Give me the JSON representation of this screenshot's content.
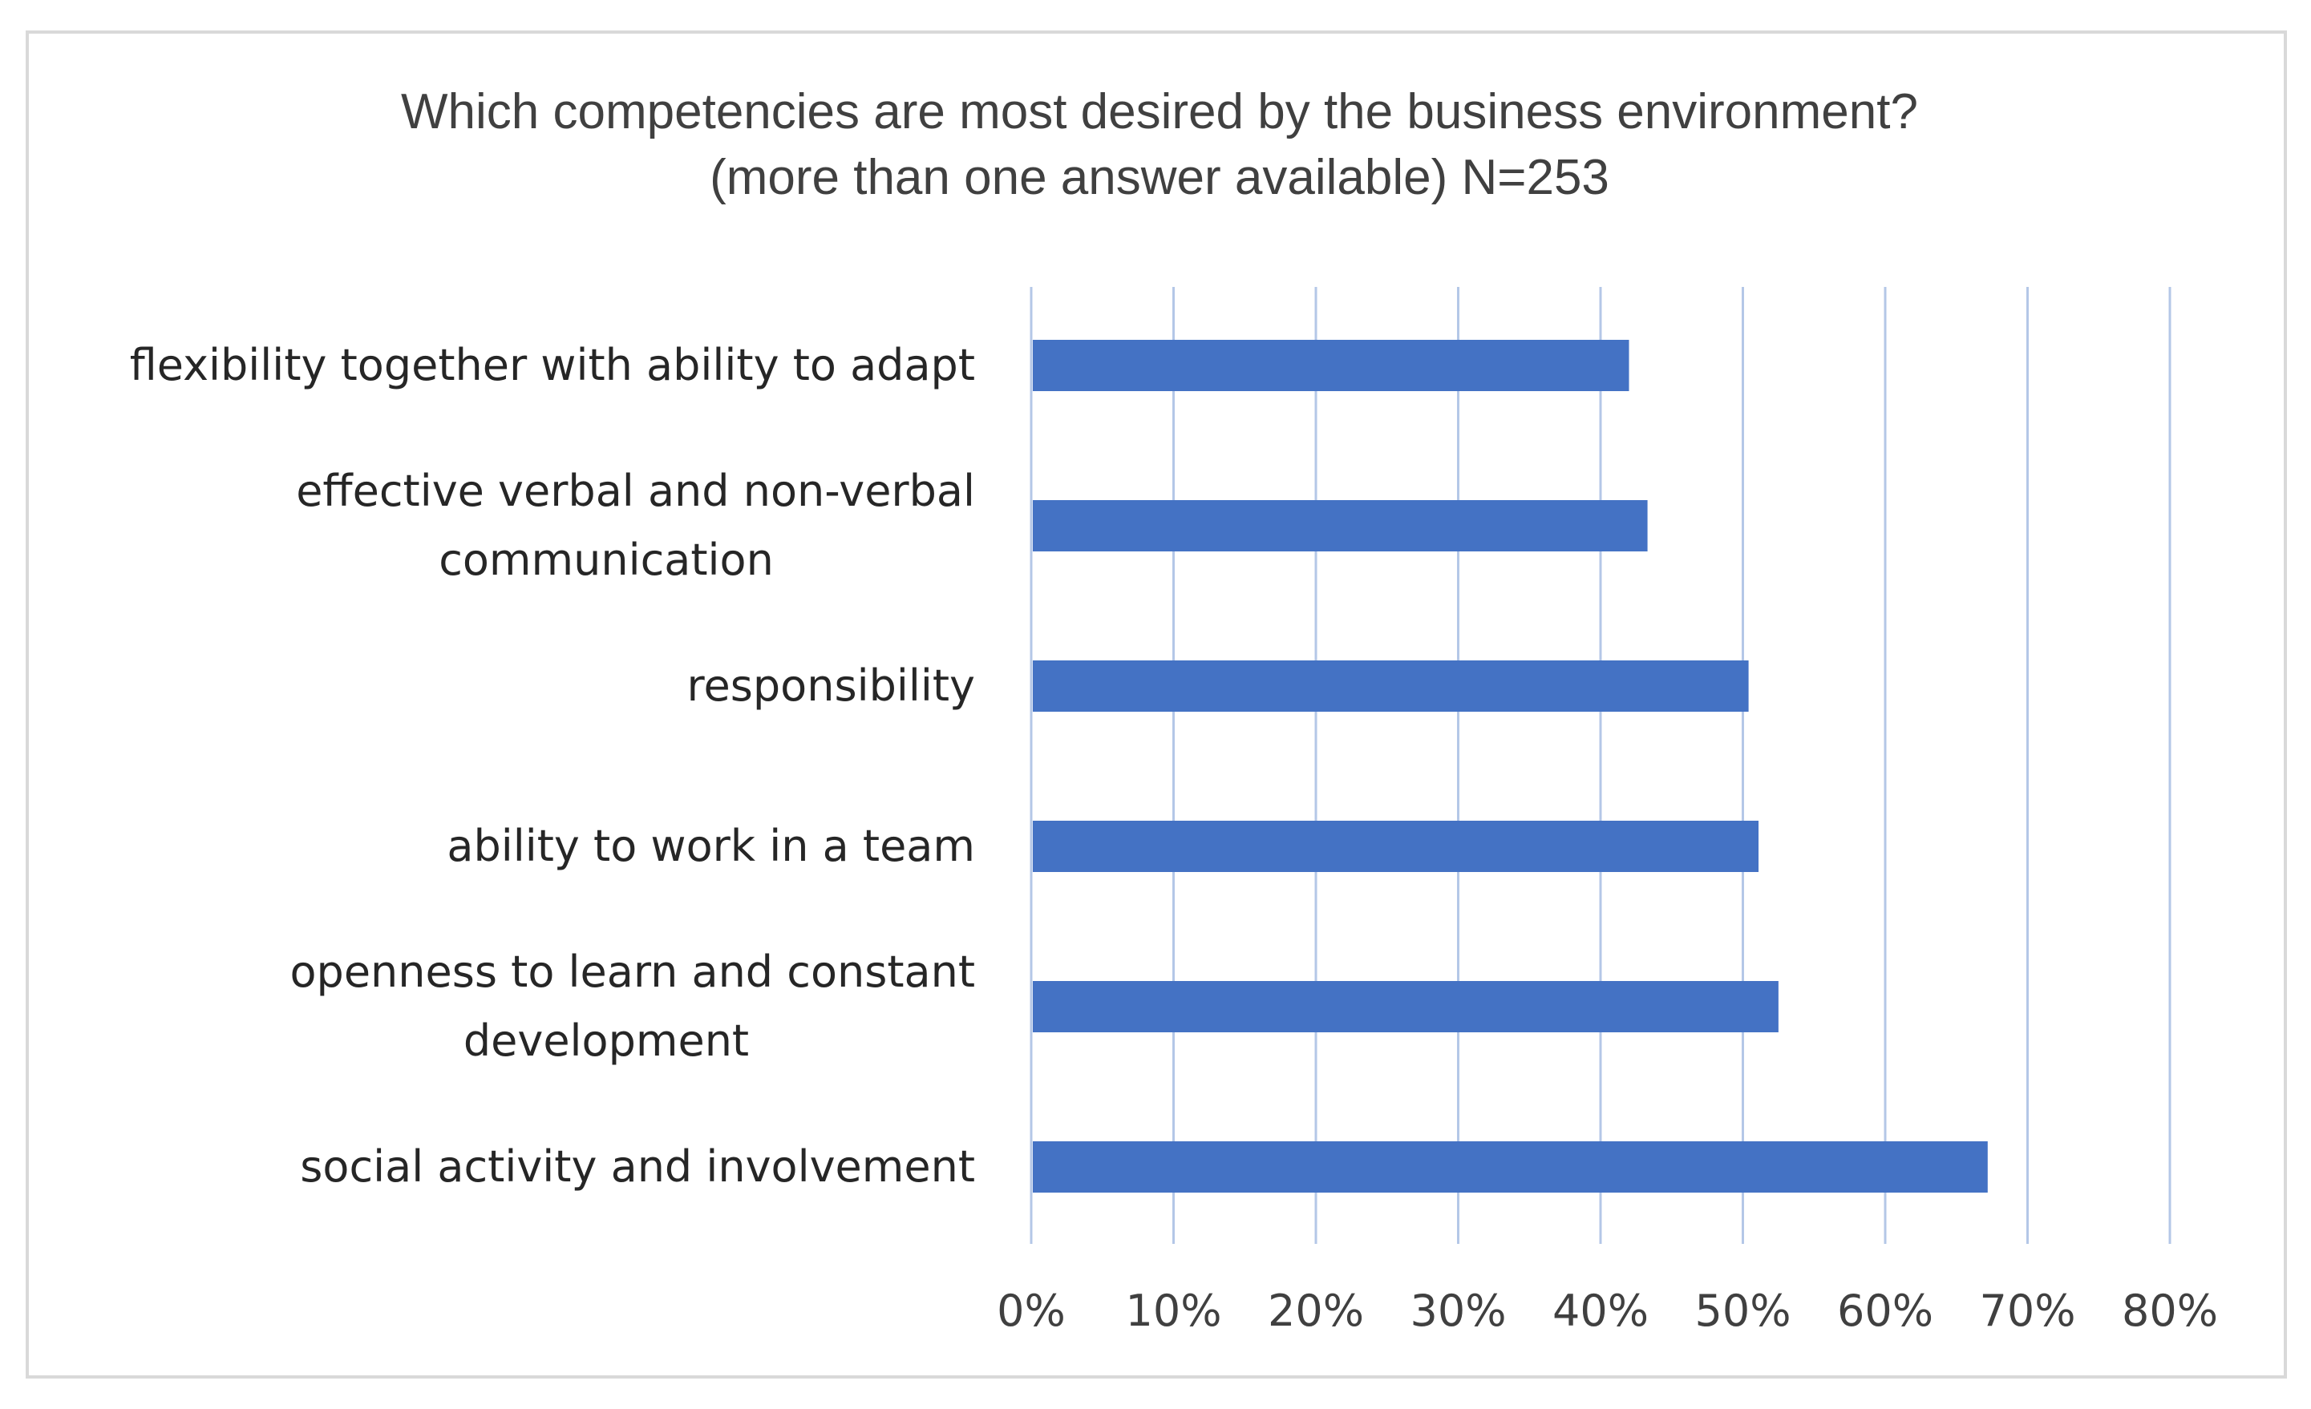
{
  "chart_data": {
    "type": "bar",
    "orientation": "horizontal",
    "title_lines": [
      "Which competencies are most desired by the business environment?",
      "(more than one answer available) N=253"
    ],
    "categories": [
      [
        "flexibility together with ability to adapt"
      ],
      [
        "effective verbal and non-verbal",
        "communication"
      ],
      [
        "responsibility"
      ],
      [
        "ability to work in a team"
      ],
      [
        "openness to learn and constant",
        "development"
      ],
      [
        "social activity and involvement"
      ]
    ],
    "values": [
      42,
      43.3,
      50.4,
      51.1,
      52.5,
      67.2
    ],
    "xlim": [
      0,
      80
    ],
    "xticks": [
      0,
      10,
      20,
      30,
      40,
      50,
      60,
      70,
      80
    ],
    "tick_labels": [
      "0%",
      "10%",
      "20%",
      "30%",
      "40%",
      "50%",
      "60%",
      "70%",
      "80%"
    ],
    "bar_color": "#4472c4",
    "grid_color": "#b4c7e7",
    "xlabel": "",
    "ylabel": "",
    "grid": true
  }
}
